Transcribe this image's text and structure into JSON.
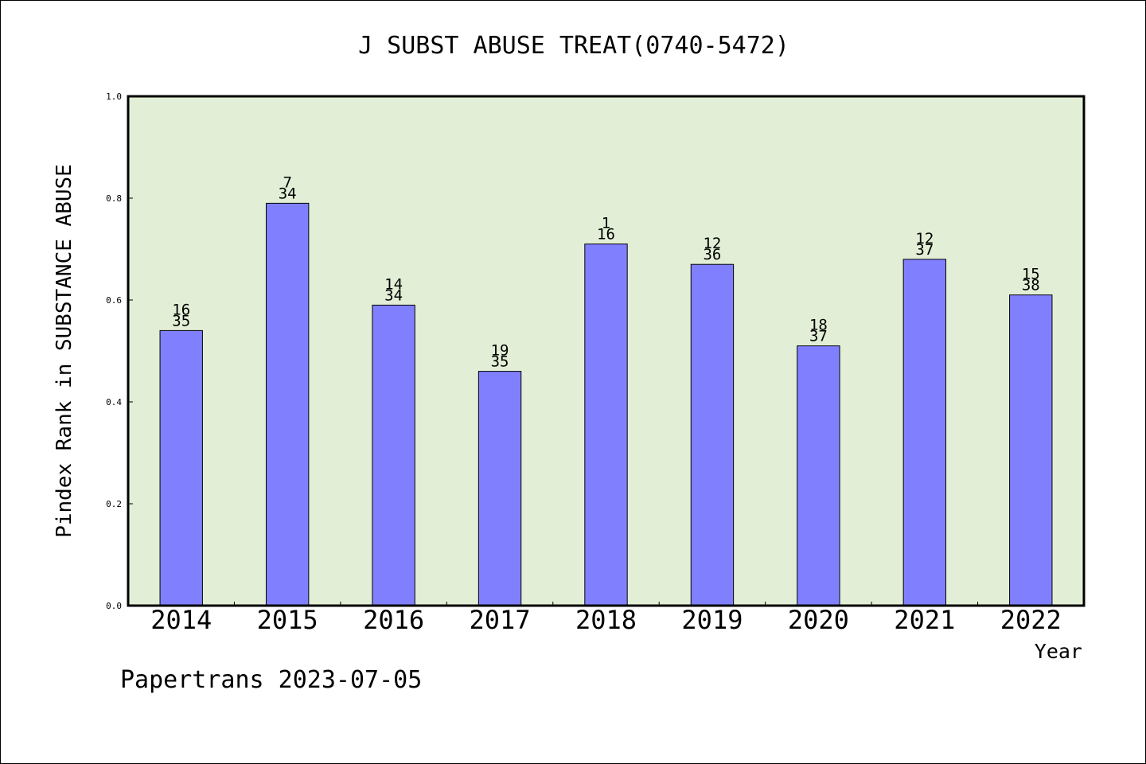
{
  "chart_data": {
    "type": "bar",
    "title": "J SUBST ABUSE TREAT(0740-5472)",
    "xlabel": "Year",
    "ylabel": "Pindex Rank in SUBSTANCE ABUSE",
    "ylim": [
      0.0,
      1.0
    ],
    "yticks": [
      "0.0",
      "0.2",
      "0.4",
      "0.6",
      "0.8",
      "1.0"
    ],
    "categories": [
      "2014",
      "2015",
      "2016",
      "2017",
      "2018",
      "2019",
      "2020",
      "2021",
      "2022"
    ],
    "values": [
      0.54,
      0.79,
      0.59,
      0.46,
      0.71,
      0.67,
      0.51,
      0.68,
      0.61
    ],
    "rank": [
      "16",
      "7",
      "14",
      "19",
      "1",
      "12",
      "18",
      "12",
      "15"
    ],
    "total": [
      "35",
      "34",
      "34",
      "35",
      "16",
      "36",
      "37",
      "37",
      "38"
    ],
    "grid": false,
    "colors": {
      "bar": "#8080ff",
      "plot_background": "#e2efd6",
      "axes": "#000000"
    }
  },
  "footer": "Papertrans 2023-07-05"
}
